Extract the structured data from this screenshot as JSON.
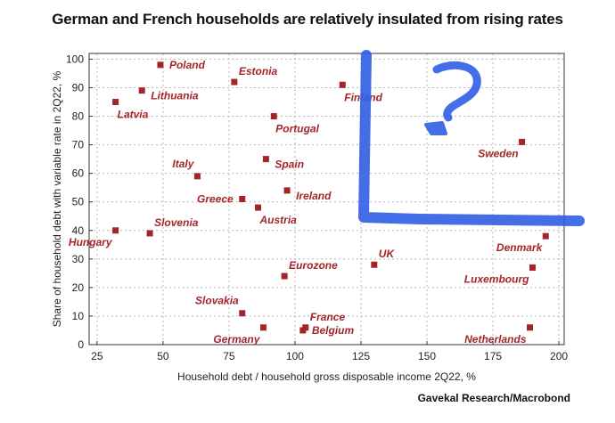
{
  "chart_data": {
    "type": "scatter",
    "title": "German and French households are relatively insulated from rising rates",
    "xlabel": "Household debt / household gross disposable income 2Q22, %",
    "ylabel": "Share of household debt with variable rate in 2Q22, %",
    "source": "Gavekal Research/Macrobond",
    "xlim": [
      22,
      202
    ],
    "ylim": [
      0,
      102
    ],
    "xticks": [
      25,
      50,
      75,
      100,
      125,
      150,
      175,
      200
    ],
    "yticks": [
      0,
      10,
      20,
      30,
      40,
      50,
      60,
      70,
      80,
      90,
      100
    ],
    "grid": true,
    "points": [
      {
        "label": "Poland",
        "x": 49,
        "y": 98,
        "label_pos": "right"
      },
      {
        "label": "Lithuania",
        "x": 42,
        "y": 89,
        "label_pos": "right-below"
      },
      {
        "label": "Latvia",
        "x": 32,
        "y": 85,
        "label_pos": "below-right"
      },
      {
        "label": "Estonia",
        "x": 77,
        "y": 92,
        "label_pos": "above-right"
      },
      {
        "label": "Finland",
        "x": 118,
        "y": 91,
        "label_pos": "below-right"
      },
      {
        "label": "Portugal",
        "x": 92,
        "y": 80,
        "label_pos": "below-right"
      },
      {
        "label": "Italy",
        "x": 63,
        "y": 59,
        "label_pos": "above-left"
      },
      {
        "label": "Spain",
        "x": 89,
        "y": 65,
        "label_pos": "right-below"
      },
      {
        "label": "Ireland",
        "x": 97,
        "y": 54,
        "label_pos": "right-below"
      },
      {
        "label": "Greece",
        "x": 80,
        "y": 51,
        "label_pos": "left"
      },
      {
        "label": "Austria",
        "x": 86,
        "y": 48,
        "label_pos": "below-right"
      },
      {
        "label": "Slovenia",
        "x": 45,
        "y": 39,
        "label_pos": "above-right"
      },
      {
        "label": "Hungary",
        "x": 32,
        "y": 40,
        "label_pos": "below-left"
      },
      {
        "label": "Sweden",
        "x": 186,
        "y": 71,
        "label_pos": "below-left"
      },
      {
        "label": "UK",
        "x": 130,
        "y": 28,
        "label_pos": "above-right"
      },
      {
        "label": "Eurozone",
        "x": 96,
        "y": 24,
        "label_pos": "above-right"
      },
      {
        "label": "Denmark",
        "x": 195,
        "y": 38,
        "label_pos": "below-left"
      },
      {
        "label": "Luxembourg",
        "x": 190,
        "y": 27,
        "label_pos": "below-left"
      },
      {
        "label": "Slovakia",
        "x": 80,
        "y": 11,
        "label_pos": "above-left"
      },
      {
        "label": "France",
        "x": 104,
        "y": 6,
        "label_pos": "above-right"
      },
      {
        "label": "Belgium",
        "x": 103,
        "y": 5,
        "label_pos": "right"
      },
      {
        "label": "Germany",
        "x": 88,
        "y": 6,
        "label_pos": "below-left"
      },
      {
        "label": "Netherlands",
        "x": 189,
        "y": 6,
        "label_pos": "below-left"
      }
    ]
  },
  "overlay": {
    "annotation": "hand-drawn blue L-shape with a question mark",
    "color": "#2f5fe6"
  }
}
